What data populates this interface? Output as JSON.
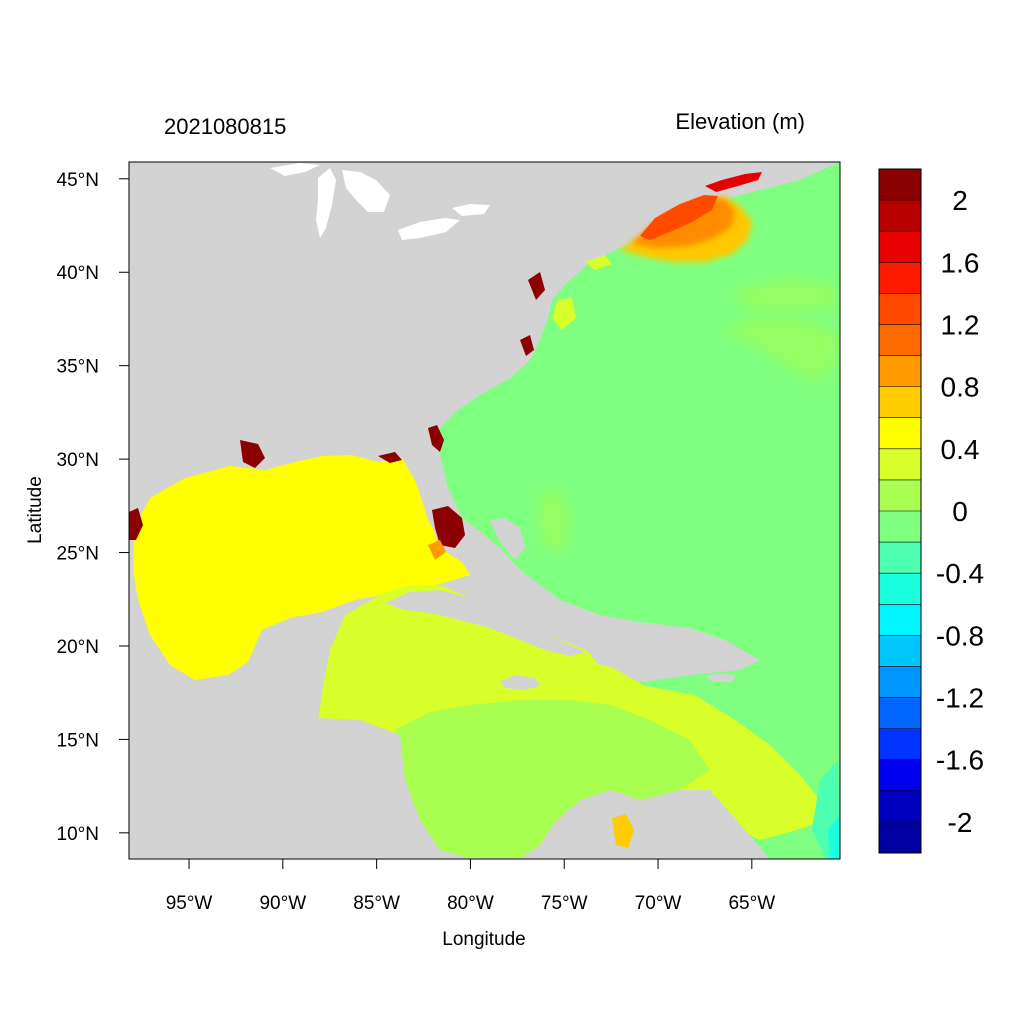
{
  "figure": {
    "timestamp": "2021080815",
    "variable_title": "Elevation (m)",
    "xlabel": "Longitude",
    "ylabel": "Latitude"
  },
  "map": {
    "lon_range": [
      -98.2,
      -60.3
    ],
    "lat_range": [
      8.6,
      45.9
    ],
    "x_ticks": [
      {
        "value": -95,
        "label": "95°W"
      },
      {
        "value": -90,
        "label": "90°W"
      },
      {
        "value": -85,
        "label": "85°W"
      },
      {
        "value": -80,
        "label": "80°W"
      },
      {
        "value": -75,
        "label": "75°W"
      },
      {
        "value": -70,
        "label": "70°W"
      },
      {
        "value": -65,
        "label": "65°W"
      }
    ],
    "y_ticks": [
      {
        "value": 10,
        "label": "10°N"
      },
      {
        "value": 15,
        "label": "15°N"
      },
      {
        "value": 20,
        "label": "20°N"
      },
      {
        "value": 25,
        "label": "25°N"
      },
      {
        "value": 30,
        "label": "30°N"
      },
      {
        "value": 35,
        "label": "35°N"
      },
      {
        "value": 40,
        "label": "40°N"
      },
      {
        "value": 45,
        "label": "45°N"
      }
    ],
    "land_color": "#d3d3d3",
    "colors": {
      "ocean_atlantic": "#7fff7f",
      "gulf": "#ffff00",
      "caribbean": "#d8ff2a",
      "caribbean_south": "#a8ff50",
      "northeast_surge": "#ff4a00",
      "northeast_surge_mid": "#ff8c00",
      "northeast_surge_outer": "#ffc800",
      "coastal_flood": "#8b0000",
      "negative_anomaly": "#4dffb0"
    }
  },
  "colorbar": {
    "levels": [
      {
        "color": "#8b0000"
      },
      {
        "color": "#b90000"
      },
      {
        "color": "#e60000"
      },
      {
        "color": "#ff1a00"
      },
      {
        "color": "#ff4a00"
      },
      {
        "color": "#ff6a00"
      },
      {
        "color": "#ff9a00"
      },
      {
        "color": "#ffcc00"
      },
      {
        "color": "#ffff00"
      },
      {
        "color": "#d8ff2a"
      },
      {
        "color": "#a8ff50"
      },
      {
        "color": "#7fff7f"
      },
      {
        "color": "#4dffb0"
      },
      {
        "color": "#1affdd"
      },
      {
        "color": "#00f5ff"
      },
      {
        "color": "#00c6ff"
      },
      {
        "color": "#0096ff"
      },
      {
        "color": "#0066ff"
      },
      {
        "color": "#0033ff"
      },
      {
        "color": "#0000ee"
      },
      {
        "color": "#0000c0"
      },
      {
        "color": "#0000a0"
      }
    ],
    "labels": [
      {
        "text": "2",
        "boundary": 1
      },
      {
        "text": "1.6",
        "boundary": 3
      },
      {
        "text": "1.2",
        "boundary": 5
      },
      {
        "text": "0.8",
        "boundary": 7
      },
      {
        "text": "0.4",
        "boundary": 9
      },
      {
        "text": "0",
        "boundary": 11
      },
      {
        "text": "-0.4",
        "boundary": 13
      },
      {
        "text": "-0.8",
        "boundary": 15
      },
      {
        "text": "-1.2",
        "boundary": 17
      },
      {
        "text": "-1.6",
        "boundary": 19
      },
      {
        "text": "-2",
        "boundary": 21
      }
    ]
  }
}
